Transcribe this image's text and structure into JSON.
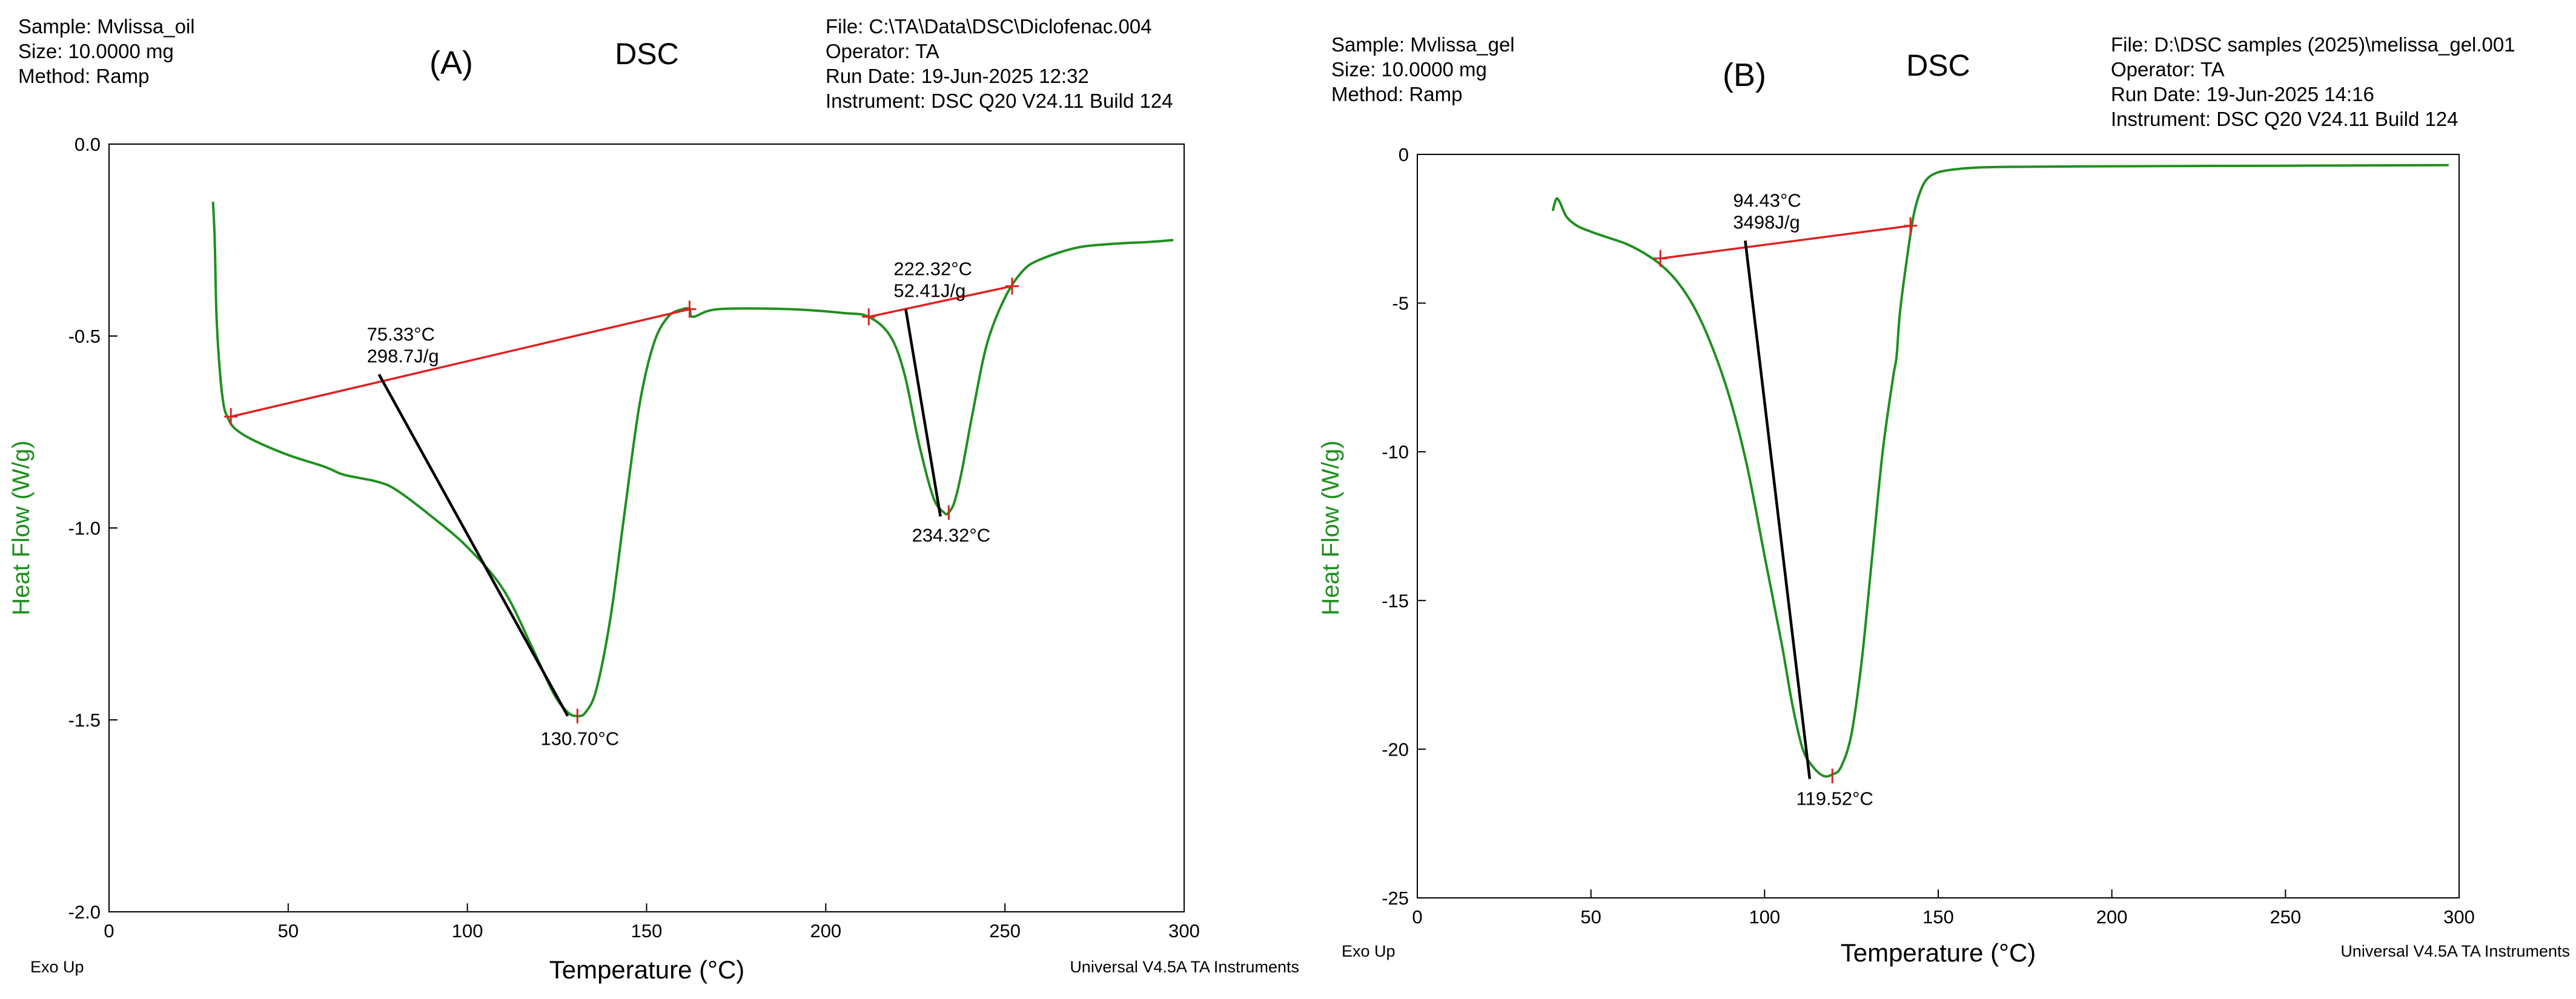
{
  "colors": {
    "curve": "#1f8f1f",
    "baseline": "#e02020",
    "construction": "#000000",
    "axis_label": "#1f8f1f",
    "axis": "#000000"
  },
  "chart_data": [
    {
      "type": "line",
      "panel_label": "(A)",
      "title": "DSC",
      "header_left": [
        "Sample: Mvlissa_oil",
        "Size:  10.0000 mg",
        "Method: Ramp"
      ],
      "header_right": [
        "File: C:\\TA\\Data\\DSC\\Diclofenac.004",
        "Operator: TA",
        "Run Date: 19-Jun-2025 12:32",
        "Instrument: DSC Q20 V24.11 Build 124"
      ],
      "xlabel": "Temperature (°C)",
      "ylabel": "Heat Flow (W/g)",
      "xlim": [
        0,
        300
      ],
      "ylim": [
        -2.0,
        0.0
      ],
      "x_ticks": [
        0,
        50,
        100,
        150,
        200,
        250,
        300
      ],
      "x_tick_labels": [
        "0",
        "50",
        "100",
        "150",
        "200",
        "250",
        "300"
      ],
      "y_ticks": [
        0.0,
        -0.5,
        -1.0,
        -1.5,
        -2.0
      ],
      "y_tick_labels": [
        "0.0",
        "-0.5",
        "-1.0",
        "-1.5",
        "-2.0"
      ],
      "footer_left": "Exo Up",
      "footer_right": "Universal V4.5A TA Instruments",
      "series": [
        {
          "name": "Heat Flow",
          "x": [
            29,
            29.5,
            30,
            31,
            32,
            33,
            35,
            40,
            50,
            60,
            65,
            70,
            75,
            80,
            90,
            100,
            110,
            118,
            124,
            128,
            130.7,
            133,
            136,
            140,
            144,
            148,
            152,
            156,
            160,
            162,
            163,
            170,
            190,
            205,
            212,
            218,
            222,
            226,
            230,
            233,
            234.3,
            236,
            238,
            241,
            245,
            250,
            255,
            260,
            270,
            280,
            290,
            297
          ],
          "y": [
            -0.15,
            -0.25,
            -0.45,
            -0.6,
            -0.68,
            -0.71,
            -0.74,
            -0.77,
            -0.81,
            -0.84,
            -0.86,
            -0.87,
            -0.88,
            -0.9,
            -0.97,
            -1.05,
            -1.16,
            -1.31,
            -1.43,
            -1.48,
            -1.49,
            -1.48,
            -1.42,
            -1.23,
            -0.95,
            -0.68,
            -0.52,
            -0.45,
            -0.43,
            -0.43,
            -0.45,
            -0.43,
            -0.43,
            -0.44,
            -0.45,
            -0.5,
            -0.6,
            -0.78,
            -0.92,
            -0.96,
            -0.96,
            -0.93,
            -0.85,
            -0.7,
            -0.52,
            -0.4,
            -0.33,
            -0.3,
            -0.27,
            -0.26,
            -0.255,
            -0.25
          ]
        }
      ],
      "baselines": [
        {
          "x1": 34,
          "y1": -0.71,
          "x2": 162,
          "y2": -0.43
        },
        {
          "x1": 212,
          "y1": -0.45,
          "x2": 252,
          "y2": -0.37
        }
      ],
      "construction_lines": [
        {
          "x1": 75.33,
          "y1": -0.6,
          "x2": 128,
          "y2": -1.49
        },
        {
          "x1": 222.32,
          "y1": -0.43,
          "x2": 232,
          "y2": -0.97
        }
      ],
      "annotations": [
        {
          "x": 75.33,
          "y": -0.6,
          "lines": [
            "75.33°C",
            "298.7J/g"
          ],
          "position": "above"
        },
        {
          "x": 130.7,
          "y": -1.49,
          "lines": [
            "130.70°C"
          ],
          "position": "below"
        },
        {
          "x": 222.32,
          "y": -0.43,
          "lines": [
            "222.32°C",
            "52.41J/g"
          ],
          "position": "above"
        },
        {
          "x": 234.32,
          "y": -0.96,
          "lines": [
            "234.32°C"
          ],
          "position": "below"
        }
      ]
    },
    {
      "type": "line",
      "panel_label": "(B)",
      "title": "DSC",
      "header_left": [
        "Sample: Mvlissa_gel",
        "Size:  10.0000 mg",
        "Method: Ramp"
      ],
      "header_right": [
        "File: D:\\DSC samples (2025)\\melissa_gel.001",
        "Operator: TA",
        "Run Date: 19-Jun-2025 14:16",
        "Instrument: DSC Q20 V24.11 Build 124"
      ],
      "xlabel": "Temperature (°C)",
      "ylabel": "Heat Flow (W/g)",
      "xlim": [
        0,
        300
      ],
      "ylim": [
        -25,
        0
      ],
      "x_ticks": [
        0,
        50,
        100,
        150,
        200,
        250,
        300
      ],
      "x_tick_labels": [
        "0",
        "50",
        "100",
        "150",
        "200",
        "250",
        "300"
      ],
      "y_ticks": [
        0,
        -5,
        -10,
        -15,
        -20,
        -25
      ],
      "y_tick_labels": [
        "0",
        "-5",
        "-10",
        "-15",
        "-20",
        "-25"
      ],
      "footer_left": "Exo Up",
      "footer_right": "Universal V4.5A TA Instruments",
      "series": [
        {
          "name": "Heat Flow",
          "x": [
            39,
            40,
            41,
            43,
            46,
            50,
            55,
            60,
            65,
            70,
            75,
            80,
            85,
            90,
            95,
            100,
            105,
            108,
            111,
            114,
            117,
            119.5,
            122,
            125,
            128,
            131,
            134,
            137,
            138,
            139,
            141,
            143,
            145,
            147,
            150,
            155,
            160,
            170,
            200,
            250,
            297
          ],
          "y": [
            -1.9,
            -1.5,
            -1.6,
            -2.1,
            -2.4,
            -2.6,
            -2.8,
            -3.0,
            -3.3,
            -3.7,
            -4.3,
            -5.2,
            -6.5,
            -8.2,
            -10.5,
            -13.5,
            -16.5,
            -18.5,
            -20.0,
            -20.6,
            -20.9,
            -20.85,
            -20.6,
            -19.5,
            -17.0,
            -13.5,
            -10.0,
            -7.5,
            -6.8,
            -5.3,
            -3.5,
            -2.0,
            -1.2,
            -0.8,
            -0.6,
            -0.5,
            -0.45,
            -0.42,
            -0.4,
            -0.38,
            -0.36
          ]
        }
      ],
      "baselines": [
        {
          "x1": 70,
          "y1": -3.5,
          "x2": 142,
          "y2": -2.4
        }
      ],
      "construction_lines": [
        {
          "x1": 94.43,
          "y1": -2.9,
          "x2": 113,
          "y2": -21.0
        }
      ],
      "annotations": [
        {
          "x": 94.43,
          "y": -2.9,
          "lines": [
            "94.43°C",
            "3498J/g"
          ],
          "position": "above"
        },
        {
          "x": 119.52,
          "y": -20.9,
          "lines": [
            "119.52°C"
          ],
          "position": "below"
        }
      ]
    }
  ]
}
